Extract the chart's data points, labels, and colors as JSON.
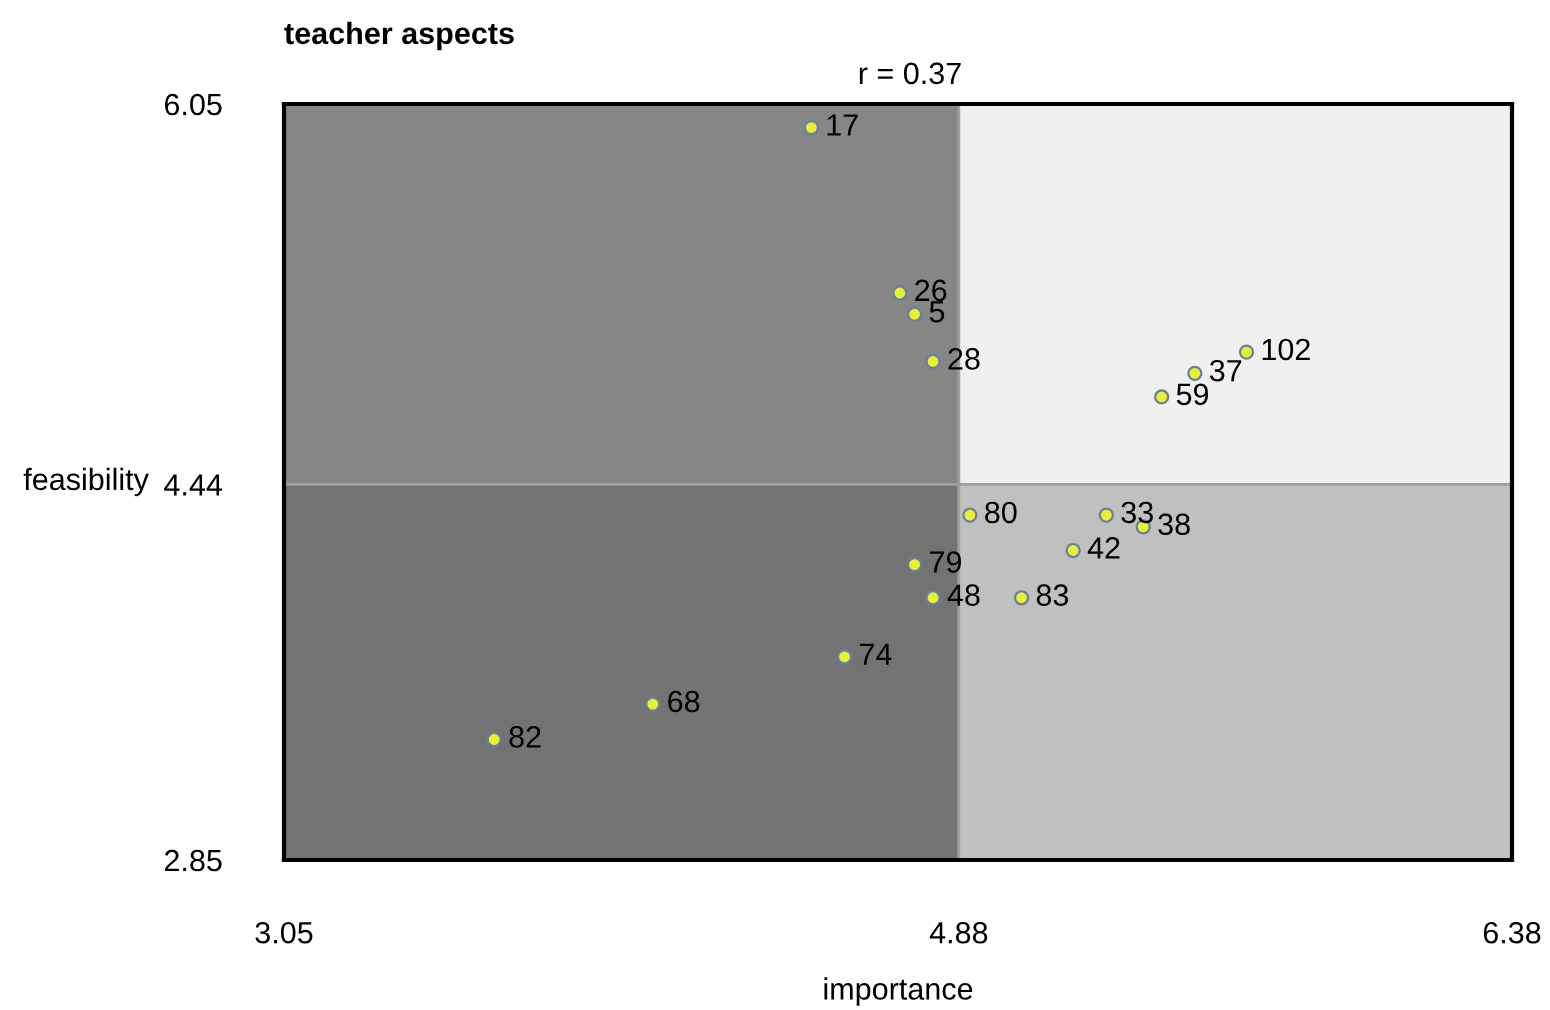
{
  "chart_data": {
    "type": "scatter",
    "title": "teacher aspects",
    "xlabel": "importance",
    "ylabel": "feasibility",
    "annotations": [
      "r = 0.37"
    ],
    "x": [
      4.48,
      4.72,
      4.76,
      4.81,
      5.66,
      5.52,
      5.43,
      4.91,
      5.28,
      5.38,
      5.19,
      4.76,
      4.81,
      5.05,
      4.57,
      4.05,
      3.62
    ],
    "series": [
      {
        "color": "#e8f032",
        "values": [
          5.95,
          5.25,
          5.16,
          4.96,
          5.0,
          4.91,
          4.81,
          4.31,
          4.31,
          4.26,
          4.16,
          4.1,
          3.96,
          3.96,
          3.71,
          3.51,
          3.36
        ]
      }
    ],
    "value_labels": [
      "17",
      "26",
      "5",
      "28",
      "102",
      "37",
      "59",
      "80",
      "33",
      "38",
      "42",
      "79",
      "48",
      "83",
      "74",
      "68",
      "82"
    ],
    "xlim": [
      3.05,
      6.38
    ],
    "ylim": [
      2.85,
      6.05
    ],
    "xticks": [
      3.05,
      4.88,
      6.38
    ],
    "yticks": [
      2.85,
      4.44,
      6.05
    ],
    "bands": [
      {
        "axis": "y",
        "from": 2.85,
        "to": 4.44,
        "color": "#c0c0c0"
      },
      {
        "axis": "x",
        "from": 3.05,
        "to": 4.88,
        "color": "#404040"
      }
    ],
    "ref_lines": [
      {
        "axis": "x",
        "value": 4.88,
        "color": "#a0a0a0"
      },
      {
        "axis": "y",
        "value": 4.44,
        "color": "#a0a0a0"
      }
    ],
    "marker": "circle",
    "grid": false,
    "legend": false
  }
}
